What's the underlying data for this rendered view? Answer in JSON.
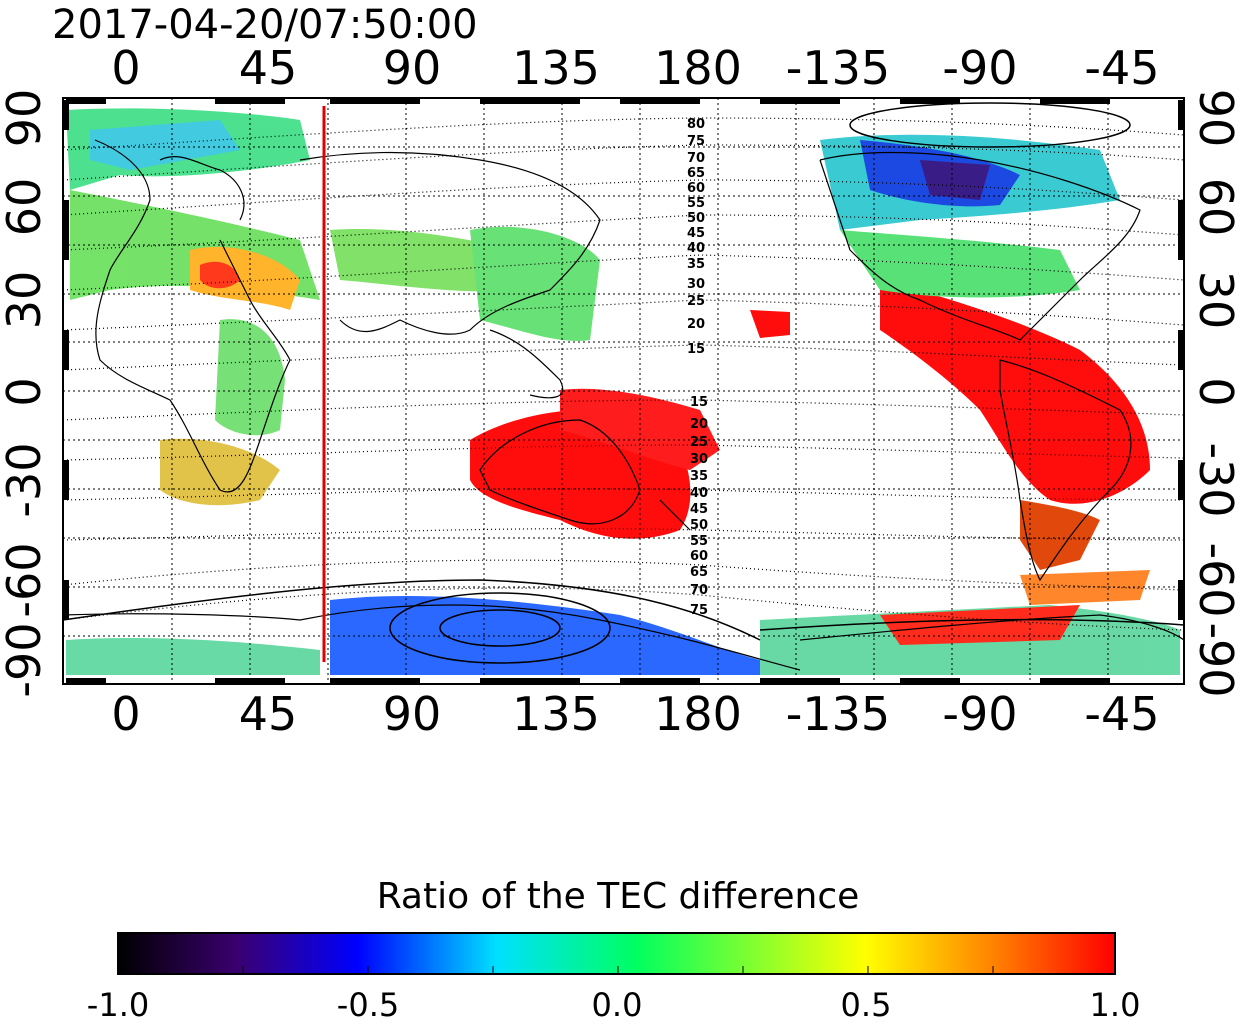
{
  "title": "2017-04-20/07:50:00",
  "map": {
    "x_ticks": [
      "0",
      "45",
      "90",
      "135",
      "180",
      "-135",
      "-90",
      "-45"
    ],
    "y_ticks_left": [
      "90",
      "60",
      "30",
      "0",
      "-30",
      "-60",
      "-90"
    ],
    "y_ticks_right": [
      "90",
      "60",
      "30",
      "0",
      "-30",
      "-60",
      "-90"
    ],
    "lon_range": [
      -20,
      340
    ],
    "lat_range": [
      -90,
      90
    ],
    "marker_longitude": 63,
    "marker_color": "#e00000",
    "grid": "dotted",
    "contour_labels_north": [
      "80",
      "75",
      "70",
      "65",
      "60",
      "55",
      "50",
      "45",
      "40",
      "35",
      "30",
      "25",
      "20",
      "15"
    ],
    "contour_labels_south": [
      "15",
      "20",
      "25",
      "30",
      "35",
      "40",
      "45",
      "50",
      "55",
      "60",
      "65",
      "70",
      "75"
    ]
  },
  "colorbar": {
    "title": "Ratio of the TEC difference",
    "ticks": [
      "-1.0",
      "-0.5",
      "0.0",
      "0.5",
      "1.0"
    ],
    "range": [
      -1.0,
      1.0
    ],
    "colors": [
      "#000000",
      "#3a0070",
      "#0000ff",
      "#00e0ff",
      "#00ff60",
      "#ffff00",
      "#ff8000",
      "#ff0000"
    ]
  }
}
